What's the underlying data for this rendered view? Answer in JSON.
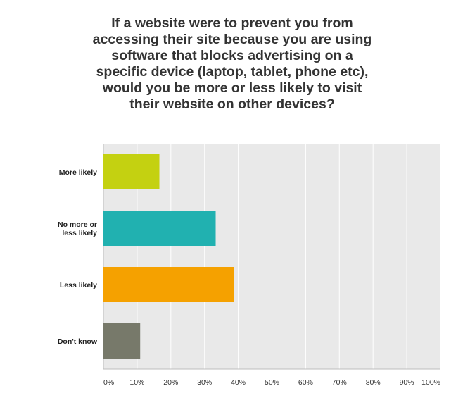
{
  "chart_data": {
    "type": "bar",
    "orientation": "horizontal",
    "title": "If a website were to prevent you from\naccessing their site because you are using\nsoftware that blocks advertising on a\nspecific device (laptop, tablet, phone etc),\nwould you be more or less likely to visit\ntheir website on other devices?",
    "categories": [
      "More likely",
      "No more or\nless likely",
      "Less likely",
      "Don't know"
    ],
    "values": [
      16.6,
      33.3,
      38.7,
      10.9
    ],
    "colors": [
      "#c4d111",
      "#21b1b0",
      "#f5a100",
      "#77796a"
    ],
    "xlim": [
      0,
      100
    ],
    "ticks": [
      0,
      10,
      20,
      30,
      40,
      50,
      60,
      70,
      80,
      90,
      100
    ],
    "tick_labels": [
      "0%",
      "10%",
      "20%",
      "30%",
      "40%",
      "50%",
      "60%",
      "70%",
      "80%",
      "90%",
      "100%"
    ],
    "grid": true,
    "plot_background": "#e9e9e9",
    "gridline_color": "#ffffff"
  }
}
